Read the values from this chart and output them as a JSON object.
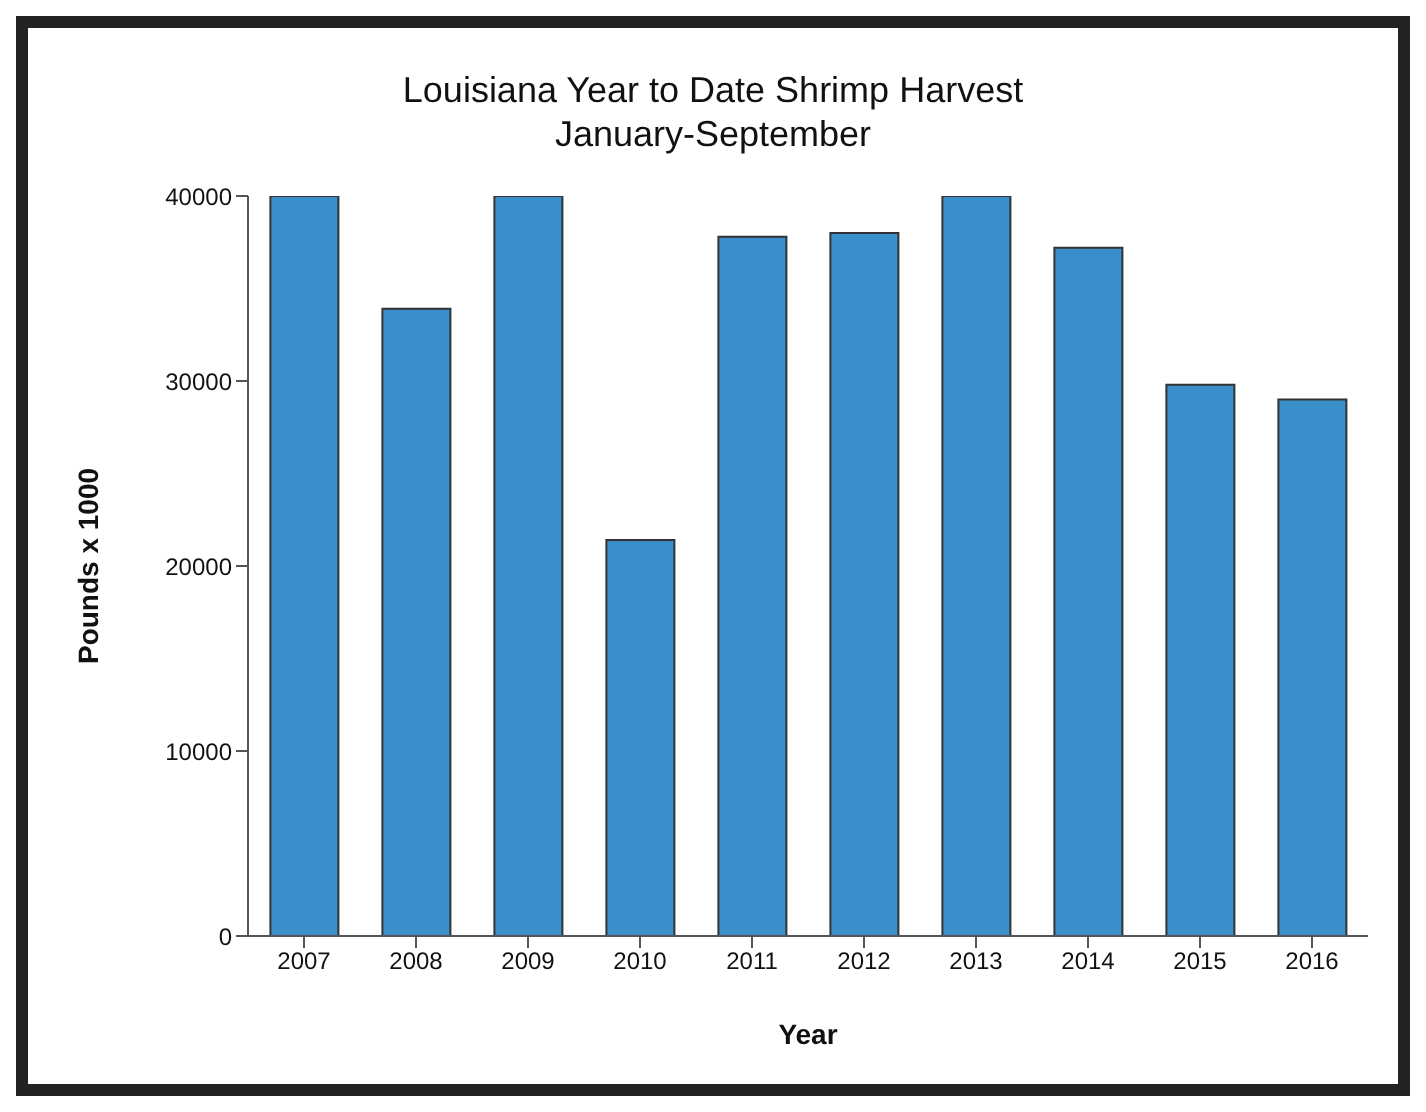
{
  "chart_data": {
    "type": "bar",
    "title": "Louisiana Year to Date Shrimp Harvest",
    "subtitle": "January-September",
    "xlabel": "Year",
    "ylabel": "Pounds x 1000",
    "categories": [
      "2007",
      "2008",
      "2009",
      "2010",
      "2011",
      "2012",
      "2013",
      "2014",
      "2015",
      "2016"
    ],
    "values": [
      40000,
      33900,
      40000,
      21400,
      37800,
      38000,
      40000,
      37200,
      29800,
      29000
    ],
    "color": "#3a8fcb",
    "ylim": [
      0,
      40000
    ],
    "yticks": [
      0,
      10000,
      20000,
      30000,
      40000
    ],
    "grid": false
  }
}
